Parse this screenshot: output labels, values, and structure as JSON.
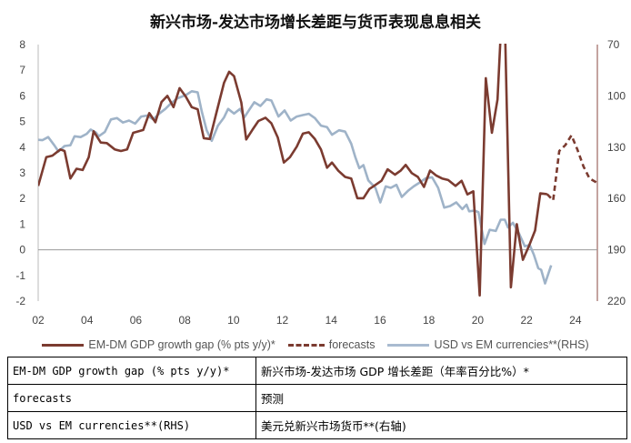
{
  "title": "新兴市场-发达市场增长差距与货币表现息息相关",
  "chart_data": {
    "type": "line",
    "title": "新兴市场-发达市场增长差距与货币表现息息相关",
    "xlim": [
      2002,
      2024.9
    ],
    "x_ticks": [
      "02",
      "04",
      "06",
      "08",
      "10",
      "12",
      "14",
      "16",
      "18",
      "20",
      "22",
      "24"
    ],
    "x_tick_years": [
      2002,
      2004,
      2006,
      2008,
      2010,
      2012,
      2014,
      2016,
      2018,
      2020,
      2022,
      2024
    ],
    "ylim_left": [
      -2,
      8
    ],
    "y_ticks_left": [
      "8",
      "7",
      "6",
      "5",
      "4",
      "3",
      "2",
      "1",
      "0",
      "-1",
      "-2"
    ],
    "ylim_right": [
      70,
      220
    ],
    "right_inverted": true,
    "y_ticks_right": [
      "70",
      "100",
      "130",
      "160",
      "190",
      "220"
    ],
    "colors": {
      "gap": "#7b3b30",
      "usd": "#9fb3c8",
      "zero": "#999999",
      "axis": "#8a4a40"
    },
    "series": [
      {
        "name": "EM-DM GDP growth gap (% pts y/y)*",
        "axis": "left",
        "style": "solid",
        "x": [
          2002.0,
          2002.33,
          2002.58,
          2002.91,
          2003.08,
          2003.32,
          2003.57,
          2003.82,
          2004.07,
          2004.27,
          2004.56,
          2004.81,
          2005.14,
          2005.39,
          2005.64,
          2005.89,
          2006.3,
          2006.55,
          2006.8,
          2007.05,
          2007.29,
          2007.54,
          2007.79,
          2008.04,
          2008.29,
          2008.53,
          2008.78,
          2009.03,
          2009.28,
          2009.61,
          2009.82,
          2010.02,
          2010.32,
          2010.52,
          2010.77,
          2011.02,
          2011.31,
          2011.55,
          2011.81,
          2012.06,
          2012.31,
          2012.59,
          2012.84,
          2013.08,
          2013.33,
          2013.58,
          2013.83,
          2014.03,
          2014.29,
          2014.57,
          2014.82,
          2015.07,
          2015.32,
          2015.56,
          2015.81,
          2016.06,
          2016.31,
          2016.61,
          2016.84,
          2017.05,
          2017.3,
          2017.55,
          2017.8,
          2018.05,
          2018.29,
          2018.54,
          2018.79,
          2019.09,
          2019.34,
          2019.58,
          2019.82,
          2020.08,
          2020.33,
          2020.58,
          2020.81,
          2020.97,
          2021.11,
          2021.36,
          2021.6,
          2021.85,
          2022.1,
          2022.35,
          2022.56,
          2022.84
        ],
        "y": [
          2.49,
          3.61,
          3.67,
          3.91,
          3.85,
          2.78,
          3.16,
          3.11,
          3.61,
          4.62,
          4.18,
          4.16,
          3.91,
          3.85,
          3.91,
          4.56,
          4.67,
          5.33,
          4.97,
          5.76,
          6.0,
          5.56,
          6.3,
          5.98,
          5.56,
          5.48,
          4.35,
          4.32,
          5.27,
          6.51,
          6.94,
          6.77,
          5.74,
          4.3,
          4.67,
          5.02,
          5.15,
          4.93,
          4.38,
          3.4,
          3.61,
          4.02,
          4.53,
          4.58,
          4.32,
          3.91,
          3.2,
          3.4,
          3.08,
          2.84,
          2.78,
          2.01,
          2.01,
          2.37,
          2.53,
          2.69,
          3.14,
          2.93,
          3.08,
          3.31,
          2.99,
          2.84,
          2.45,
          3.09,
          2.9,
          2.78,
          2.72,
          2.49,
          2.69,
          2.16,
          2.28,
          -1.78,
          6.69,
          4.56,
          5.86,
          9.0,
          9.0,
          -1.46,
          1.0,
          -0.39,
          0.15,
          0.75,
          2.2,
          2.17
        ]
      },
      {
        "name": "forecasts",
        "axis": "left",
        "style": "dashed",
        "x": [
          2022.84,
          2023.09,
          2023.34,
          2023.59,
          2023.84,
          2024.08,
          2024.33,
          2024.58,
          2024.91
        ],
        "y": [
          2.17,
          1.93,
          3.85,
          4.08,
          4.46,
          3.91,
          3.25,
          2.78,
          2.6
        ]
      },
      {
        "name": "USD vs EM currencies**(RHS)",
        "axis": "right",
        "style": "solid",
        "x": [
          2002.0,
          2002.17,
          2002.41,
          2002.66,
          2002.83,
          2003.08,
          2003.32,
          2003.49,
          2003.74,
          2003.99,
          2004.15,
          2004.37,
          2004.48,
          2004.73,
          2004.98,
          2005.23,
          2005.47,
          2005.72,
          2005.97,
          2006.22,
          2006.47,
          2006.71,
          2006.96,
          2007.21,
          2007.46,
          2007.71,
          2008.04,
          2008.29,
          2008.53,
          2008.7,
          2008.9,
          2009.11,
          2009.36,
          2009.61,
          2009.78,
          2010.02,
          2010.27,
          2010.44,
          2010.65,
          2010.85,
          2011.1,
          2011.35,
          2011.55,
          2011.84,
          2012.09,
          2012.34,
          2012.59,
          2012.84,
          2013.08,
          2013.33,
          2013.58,
          2013.83,
          2014.03,
          2014.32,
          2014.57,
          2014.82,
          2014.99,
          2015.15,
          2015.32,
          2015.52,
          2015.81,
          2016.01,
          2016.23,
          2016.44,
          2016.67,
          2016.89,
          2017.14,
          2017.38,
          2017.63,
          2017.88,
          2018.13,
          2018.38,
          2018.63,
          2018.87,
          2019.12,
          2019.37,
          2019.54,
          2019.65,
          2019.87,
          2020.03,
          2020.28,
          2020.49,
          2020.74,
          2020.94,
          2021.11,
          2021.24,
          2021.44,
          2021.69,
          2021.93,
          2022.13,
          2022.3,
          2022.48,
          2022.6,
          2022.76,
          2023.01
        ],
        "y": [
          125.7,
          125.9,
          124.1,
          128.9,
          132.5,
          129.3,
          128.9,
          123.6,
          124.1,
          122.2,
          119.7,
          121.5,
          123.6,
          121.1,
          113.8,
          113.0,
          115.6,
          114.4,
          116.2,
          112.1,
          111.5,
          113.8,
          110.3,
          107.6,
          104.1,
          101.4,
          99.6,
          97.3,
          97.9,
          109.1,
          120.1,
          126.3,
          117.4,
          112.6,
          107.6,
          110.3,
          107.6,
          112.6,
          108.0,
          103.7,
          105.9,
          102.0,
          102.7,
          112.1,
          108.5,
          114.4,
          112.1,
          111.2,
          110.5,
          113.0,
          117.4,
          118.3,
          122.7,
          120.1,
          120.9,
          128.0,
          136.0,
          142.3,
          140.5,
          149.4,
          153.8,
          162.3,
          152.9,
          153.8,
          152.0,
          159.1,
          155.6,
          152.9,
          150.6,
          148.1,
          147.6,
          153.8,
          165.3,
          164.4,
          162.3,
          166.2,
          163.6,
          167.5,
          167.1,
          168.0,
          186.6,
          178.3,
          179.0,
          172.4,
          172.4,
          176.9,
          174.2,
          180.4,
          187.9,
          187.2,
          192.9,
          200.8,
          201.7,
          209.7,
          199.1
        ]
      }
    ]
  },
  "legend": {
    "gap": "EM-DM GDP growth gap (% pts y/y)*",
    "forecasts": "forecasts",
    "usd": "USD vs EM currencies**(RHS)"
  },
  "table": [
    {
      "en": "EM-DM GDP growth gap (% pts y/y)*",
      "zh": "新兴市场-发达市场 GDP 增长差距（年率百分比%）*"
    },
    {
      "en": "forecasts",
      "zh": "预测"
    },
    {
      "en": "USD vs EM currencies**(RHS)",
      "zh": "美元兑新兴市场货币**(右轴)"
    }
  ]
}
